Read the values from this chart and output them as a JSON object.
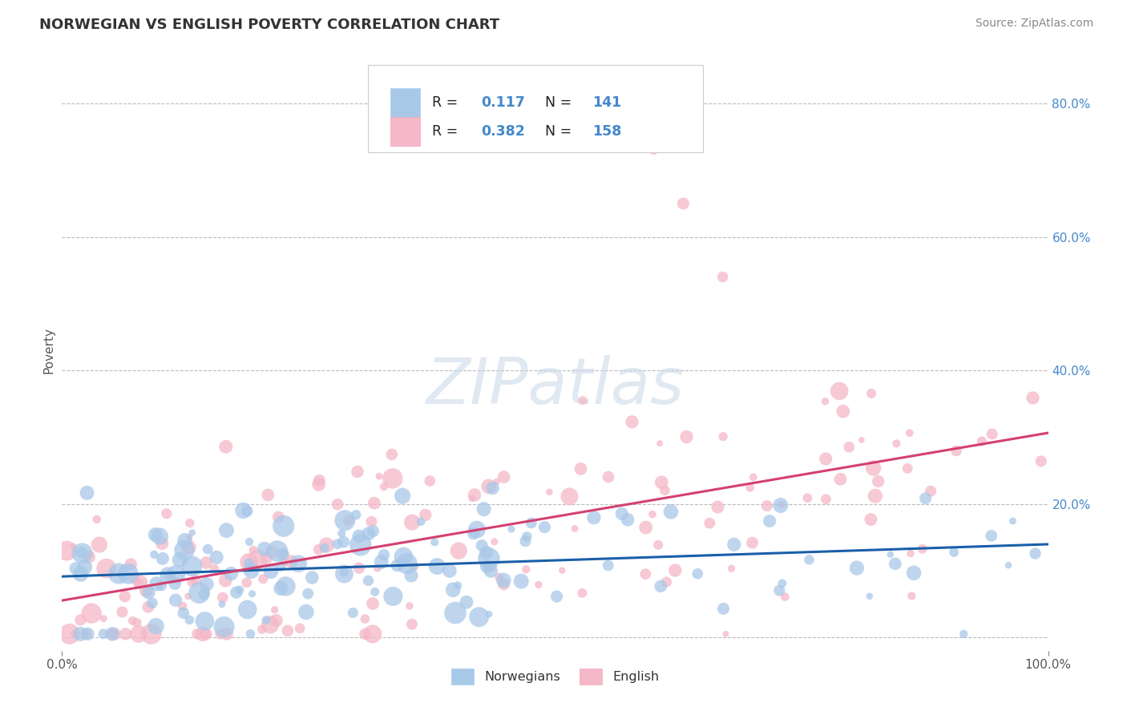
{
  "title": "NORWEGIAN VS ENGLISH POVERTY CORRELATION CHART",
  "source_text": "Source: ZipAtlas.com",
  "ylabel": "Poverty",
  "background_color": "#ffffff",
  "watermark_text": "ZIPatlas",
  "blue_color": "#a8c8e8",
  "pink_color": "#f4b8c8",
  "blue_line_color": "#1a5fa8",
  "pink_line_color": "#d44070",
  "legend_text_color": "#4488cc",
  "title_color": "#333333",
  "source_color": "#888888",
  "ylabel_color": "#555555",
  "xlim": [
    0.0,
    1.0
  ],
  "ylim": [
    -0.02,
    0.88
  ],
  "y_ticks_right": [
    0.0,
    0.2,
    0.4,
    0.6,
    0.8
  ],
  "y_tick_labels_right": [
    "",
    "20.0%",
    "40.0%",
    "60.0%",
    "80.0%"
  ],
  "r_nor": "0.117",
  "n_nor": "141",
  "r_eng": "0.382",
  "n_eng": "158",
  "legend_nor": "Norwegians",
  "legend_eng": "English"
}
